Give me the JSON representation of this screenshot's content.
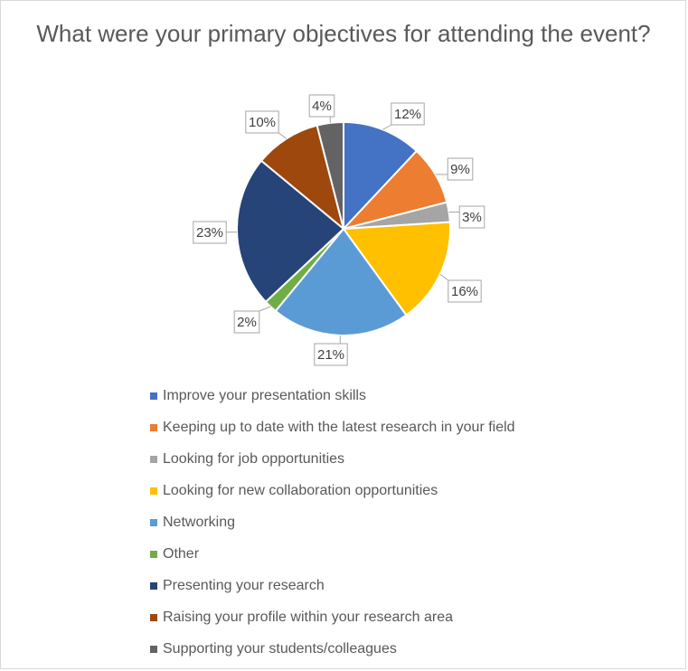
{
  "chart_data": {
    "type": "pie",
    "title": "What were your primary objectives for attending the event?",
    "categories": [
      "Improve your presentation skills",
      "Keeping up to date with the latest research in your field",
      "Looking for job opportunities",
      "Looking for new collaboration opportunities",
      "Networking",
      "Other",
      "Presenting your research",
      "Raising your profile within your research area",
      "Supporting your students/colleagues"
    ],
    "values": [
      12,
      9,
      3,
      16,
      21,
      2,
      23,
      10,
      4
    ],
    "data_labels": [
      "12%",
      "9%",
      "3%",
      "16%",
      "21%",
      "2%",
      "23%",
      "10%",
      "4%"
    ],
    "colors": [
      "#4472c4",
      "#ed7d31",
      "#a5a5a5",
      "#ffc000",
      "#5b9bd5",
      "#70ad47",
      "#264478",
      "#9e480e",
      "#636363"
    ],
    "legend_position": "bottom"
  }
}
